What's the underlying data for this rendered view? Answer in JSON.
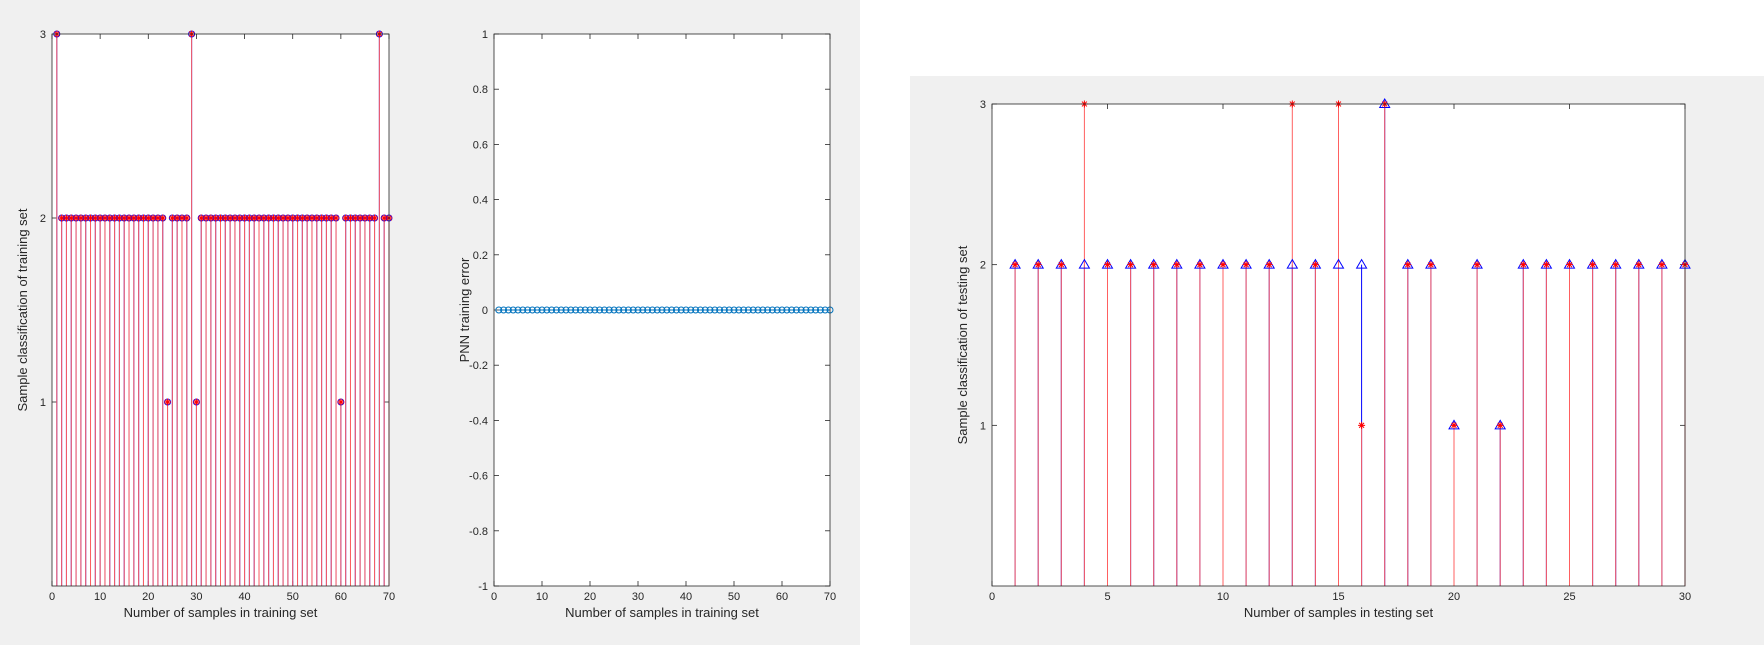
{
  "chart_data": [
    {
      "type": "stem",
      "xlabel": "Number of samples in training set",
      "ylabel": "Sample classification of training set",
      "xlim": [
        0,
        70
      ],
      "ylim": [
        0,
        3
      ],
      "xticks": [
        "0",
        "10",
        "20",
        "30",
        "40",
        "50",
        "60",
        "70"
      ],
      "yticks": [
        "1",
        "2",
        "3"
      ],
      "x": [
        1,
        2,
        3,
        4,
        5,
        6,
        7,
        8,
        9,
        10,
        11,
        12,
        13,
        14,
        15,
        16,
        17,
        18,
        19,
        20,
        21,
        22,
        23,
        24,
        25,
        26,
        27,
        28,
        29,
        30,
        31,
        32,
        33,
        34,
        35,
        36,
        37,
        38,
        39,
        40,
        41,
        42,
        43,
        44,
        45,
        46,
        47,
        48,
        49,
        50,
        51,
        52,
        53,
        54,
        55,
        56,
        57,
        58,
        59,
        60,
        61,
        62,
        63,
        64,
        65,
        66,
        67,
        68,
        69,
        70
      ],
      "series": [
        {
          "marker": "circle",
          "color": "#0000ff",
          "values": [
            3,
            2,
            2,
            2,
            2,
            2,
            2,
            2,
            2,
            2,
            2,
            2,
            2,
            2,
            2,
            2,
            2,
            2,
            2,
            2,
            2,
            2,
            2,
            1,
            2,
            2,
            2,
            2,
            3,
            1,
            2,
            2,
            2,
            2,
            2,
            2,
            2,
            2,
            2,
            2,
            2,
            2,
            2,
            2,
            2,
            2,
            2,
            2,
            2,
            2,
            2,
            2,
            2,
            2,
            2,
            2,
            2,
            2,
            2,
            1,
            2,
            2,
            2,
            2,
            2,
            2,
            2,
            3,
            2,
            2
          ]
        },
        {
          "marker": "asterisk",
          "color": "#ff0000",
          "values": [
            3,
            2,
            2,
            2,
            2,
            2,
            2,
            2,
            2,
            2,
            2,
            2,
            2,
            2,
            2,
            2,
            2,
            2,
            2,
            2,
            2,
            2,
            2,
            1,
            2,
            2,
            2,
            2,
            3,
            1,
            2,
            2,
            2,
            2,
            2,
            2,
            2,
            2,
            2,
            2,
            2,
            2,
            2,
            2,
            2,
            2,
            2,
            2,
            2,
            2,
            2,
            2,
            2,
            2,
            2,
            2,
            2,
            2,
            2,
            1,
            2,
            2,
            2,
            2,
            2,
            2,
            2,
            3,
            2,
            2
          ]
        }
      ]
    },
    {
      "type": "line",
      "xlabel": "Number of samples in training set",
      "ylabel": "PNN training error",
      "xlim": [
        0,
        70
      ],
      "ylim": [
        -1,
        1
      ],
      "xticks": [
        "0",
        "10",
        "20",
        "30",
        "40",
        "50",
        "60",
        "70"
      ],
      "yticks": [
        "-1",
        "-0.8",
        "-0.6",
        "-0.4",
        "-0.2",
        "0",
        "0.2",
        "0.4",
        "0.6",
        "0.8",
        "1"
      ],
      "x": [
        1,
        2,
        3,
        4,
        5,
        6,
        7,
        8,
        9,
        10,
        11,
        12,
        13,
        14,
        15,
        16,
        17,
        18,
        19,
        20,
        21,
        22,
        23,
        24,
        25,
        26,
        27,
        28,
        29,
        30,
        31,
        32,
        33,
        34,
        35,
        36,
        37,
        38,
        39,
        40,
        41,
        42,
        43,
        44,
        45,
        46,
        47,
        48,
        49,
        50,
        51,
        52,
        53,
        54,
        55,
        56,
        57,
        58,
        59,
        60,
        61,
        62,
        63,
        64,
        65,
        66,
        67,
        68,
        69,
        70
      ],
      "series": [
        {
          "marker": "circle",
          "color": "#0072bd",
          "values": [
            0,
            0,
            0,
            0,
            0,
            0,
            0,
            0,
            0,
            0,
            0,
            0,
            0,
            0,
            0,
            0,
            0,
            0,
            0,
            0,
            0,
            0,
            0,
            0,
            0,
            0,
            0,
            0,
            0,
            0,
            0,
            0,
            0,
            0,
            0,
            0,
            0,
            0,
            0,
            0,
            0,
            0,
            0,
            0,
            0,
            0,
            0,
            0,
            0,
            0,
            0,
            0,
            0,
            0,
            0,
            0,
            0,
            0,
            0,
            0,
            0,
            0,
            0,
            0,
            0,
            0,
            0,
            0,
            0,
            0
          ]
        }
      ]
    },
    {
      "type": "stem",
      "xlabel": "Number of samples in testing set",
      "ylabel": "Sample classification of testing set",
      "xlim": [
        0,
        30
      ],
      "ylim": [
        0,
        3
      ],
      "xticks": [
        "0",
        "5",
        "10",
        "15",
        "20",
        "25",
        "30"
      ],
      "yticks": [
        "1",
        "2",
        "3"
      ],
      "x": [
        1,
        2,
        3,
        4,
        5,
        6,
        7,
        8,
        9,
        10,
        11,
        12,
        13,
        14,
        15,
        16,
        17,
        18,
        19,
        20,
        21,
        22,
        23,
        24,
        25,
        26,
        27,
        28,
        29,
        30
      ],
      "series": [
        {
          "marker": "triangle",
          "color": "#0000ff",
          "values": [
            2,
            2,
            2,
            2,
            2,
            2,
            2,
            2,
            2,
            2,
            2,
            2,
            2,
            2,
            2,
            2,
            3,
            2,
            2,
            1,
            2,
            1,
            2,
            2,
            2,
            2,
            2,
            2,
            2,
            2
          ]
        },
        {
          "marker": "asterisk",
          "color": "#ff0000",
          "values": [
            2,
            2,
            2,
            3,
            2,
            2,
            2,
            2,
            2,
            2,
            2,
            2,
            3,
            2,
            3,
            1,
            3,
            2,
            2,
            1,
            2,
            1,
            2,
            2,
            2,
            2,
            2,
            2,
            2,
            2
          ]
        }
      ]
    }
  ]
}
